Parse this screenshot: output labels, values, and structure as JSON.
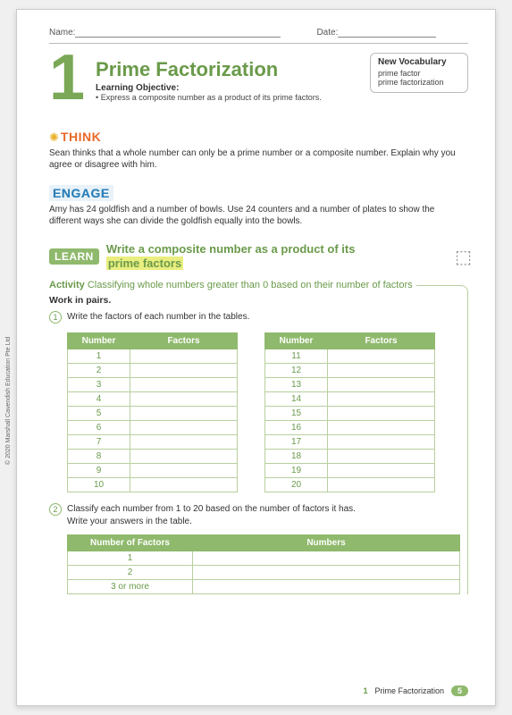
{
  "copyright": "© 2020 Marshall Cavendish Education Pte Ltd",
  "nameLabel": "Name:",
  "dateLabel": "Date:",
  "chapterNum": "1",
  "title": "Prime Factorization",
  "objectiveLabel": "Learning Objective:",
  "objectiveText": "• Express a composite number as a product of its prime factors.",
  "vocab": {
    "title": "New Vocabulary",
    "line1": "prime factor",
    "line2": "prime factorization"
  },
  "think": {
    "label": "THINK",
    "text": "Sean thinks that a whole number can only be a prime number or a composite number. Explain why you agree or disagree with him."
  },
  "engage": {
    "label": "ENGAGE",
    "text": "Amy has 24 goldfish and a number of bowls. Use 24 counters and a number of plates to show the different ways she can divide the goldfish equally into the bowls."
  },
  "learn": {
    "chip": "LEARN",
    "titleA": "Write a composite number as a product of its",
    "titleB": "prime factors"
  },
  "activity": {
    "chip": "Activity",
    "title": "Classifying whole numbers greater than 0 based on their number of factors",
    "work": "Work in pairs.",
    "step1": "Write the factors of each number in the tables.",
    "step2a": "Classify each number from 1 to 20 based on the number of factors it has.",
    "step2b": "Write your answers in the table."
  },
  "table1": {
    "h1": "Number",
    "h2": "Factors",
    "left": [
      "1",
      "2",
      "3",
      "4",
      "5",
      "6",
      "7",
      "8",
      "9",
      "10"
    ],
    "right": [
      "11",
      "12",
      "13",
      "14",
      "15",
      "16",
      "17",
      "18",
      "19",
      "20"
    ]
  },
  "table2": {
    "h1": "Number of Factors",
    "h2": "Numbers",
    "rows": [
      "1",
      "2",
      "3 or more"
    ]
  },
  "footer": {
    "num": "1",
    "title": "Prime Factorization",
    "page": "5"
  }
}
